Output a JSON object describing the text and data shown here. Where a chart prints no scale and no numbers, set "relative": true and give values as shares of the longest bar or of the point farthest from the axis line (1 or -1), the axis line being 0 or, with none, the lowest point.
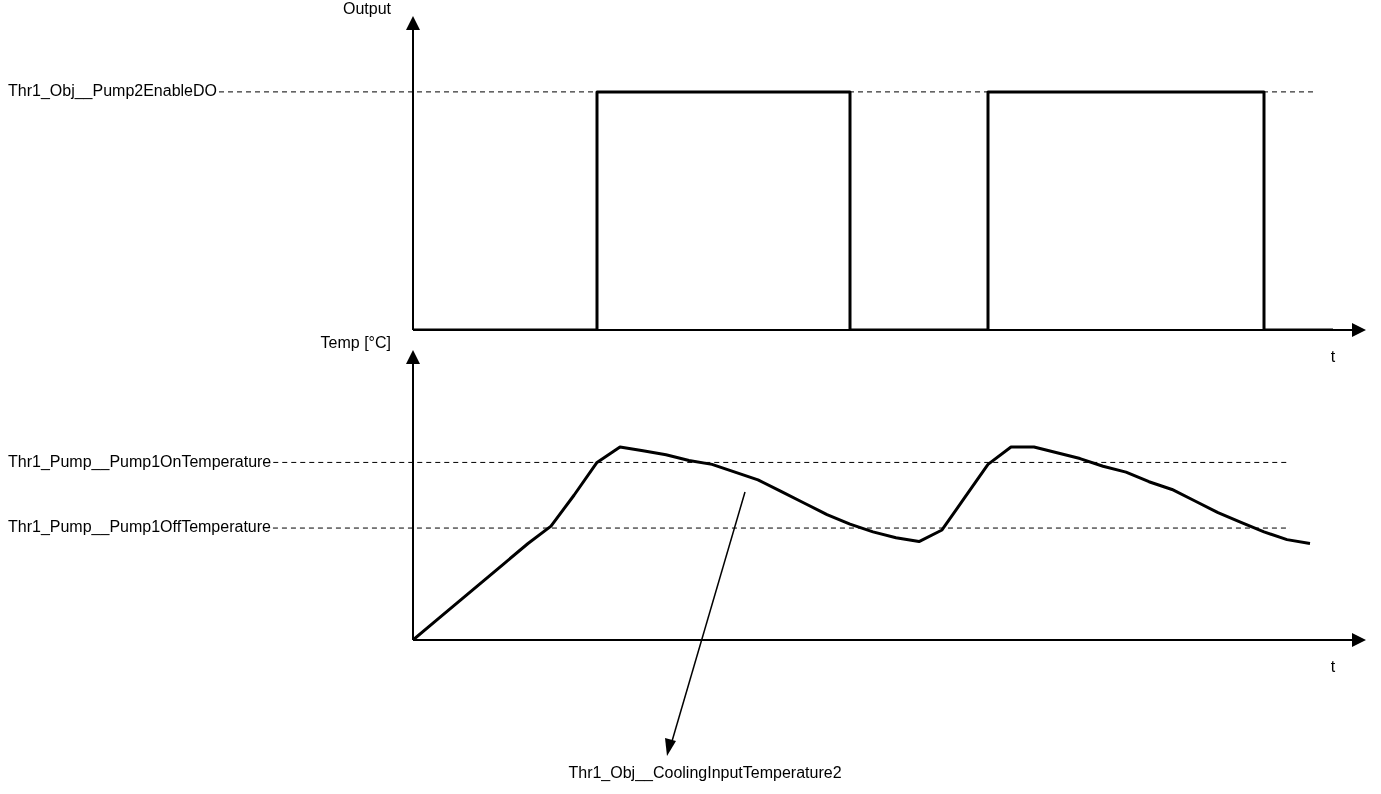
{
  "chart_data": [
    {
      "type": "step",
      "relative": true,
      "ylabel": "Output",
      "xlabel": "t",
      "categories": [
        null,
        null,
        null,
        null,
        null,
        null,
        null,
        null,
        null,
        null,
        null,
        null,
        null,
        null,
        null,
        null,
        null,
        null,
        null,
        null,
        null,
        null,
        null,
        null,
        null,
        null,
        null,
        null,
        null,
        null,
        null,
        null,
        null,
        null,
        null,
        null,
        null,
        null,
        null,
        null,
        null
      ],
      "series": [
        {
          "color": "#000000",
          "values": [
            0,
            0,
            0,
            0,
            0,
            0,
            0,
            0,
            1,
            1,
            1,
            1,
            1,
            1,
            1,
            1,
            1,
            1,
            1,
            0,
            0,
            0,
            0,
            0,
            0,
            1,
            1,
            1,
            1,
            1,
            1,
            1,
            1,
            1,
            1,
            1,
            1,
            0,
            0,
            0,
            0
          ]
        }
      ],
      "ref_lines": [
        {
          "axis": "y",
          "value": 1,
          "label": "Thr1_Obj__Pump2EnableDO",
          "line_style": "dashed"
        }
      ]
    },
    {
      "type": "line",
      "relative": true,
      "ylabel": "Temp [°C]",
      "xlabel": "t",
      "categories": [
        null,
        null,
        null,
        null,
        null,
        null,
        null,
        null,
        null,
        null,
        null,
        null,
        null,
        null,
        null,
        null,
        null,
        null,
        null,
        null,
        null,
        null,
        null,
        null,
        null,
        null,
        null,
        null,
        null,
        null,
        null,
        null,
        null,
        null,
        null,
        null,
        null,
        null,
        null,
        null
      ],
      "series": [
        {
          "color": "#000000",
          "values": [
            0,
            0.1,
            0.2,
            0.3,
            0.4,
            0.5,
            0.59,
            0.75,
            0.92,
            1,
            0.98,
            0.96,
            0.93,
            0.91,
            0.87,
            0.83,
            0.77,
            0.71,
            0.65,
            0.6,
            0.56,
            0.53,
            0.51,
            0.57,
            0.74,
            0.91,
            1,
            1,
            0.97,
            0.94,
            0.9,
            0.87,
            0.82,
            0.78,
            0.72,
            0.66,
            0.61,
            0.56,
            0.52,
            0.5
          ]
        }
      ],
      "ref_lines": [
        {
          "axis": "y",
          "value": 0.92,
          "label": "Thr1_Pump__Pump1OnTemperature",
          "line_style": "dashed"
        },
        {
          "axis": "y",
          "value": 0.58,
          "label": "Thr1_Pump__Pump1OffTemperature",
          "line_style": "dashed"
        }
      ],
      "annotations": [
        "Thr1_Obj__CoolingInputTemperature2"
      ]
    }
  ]
}
